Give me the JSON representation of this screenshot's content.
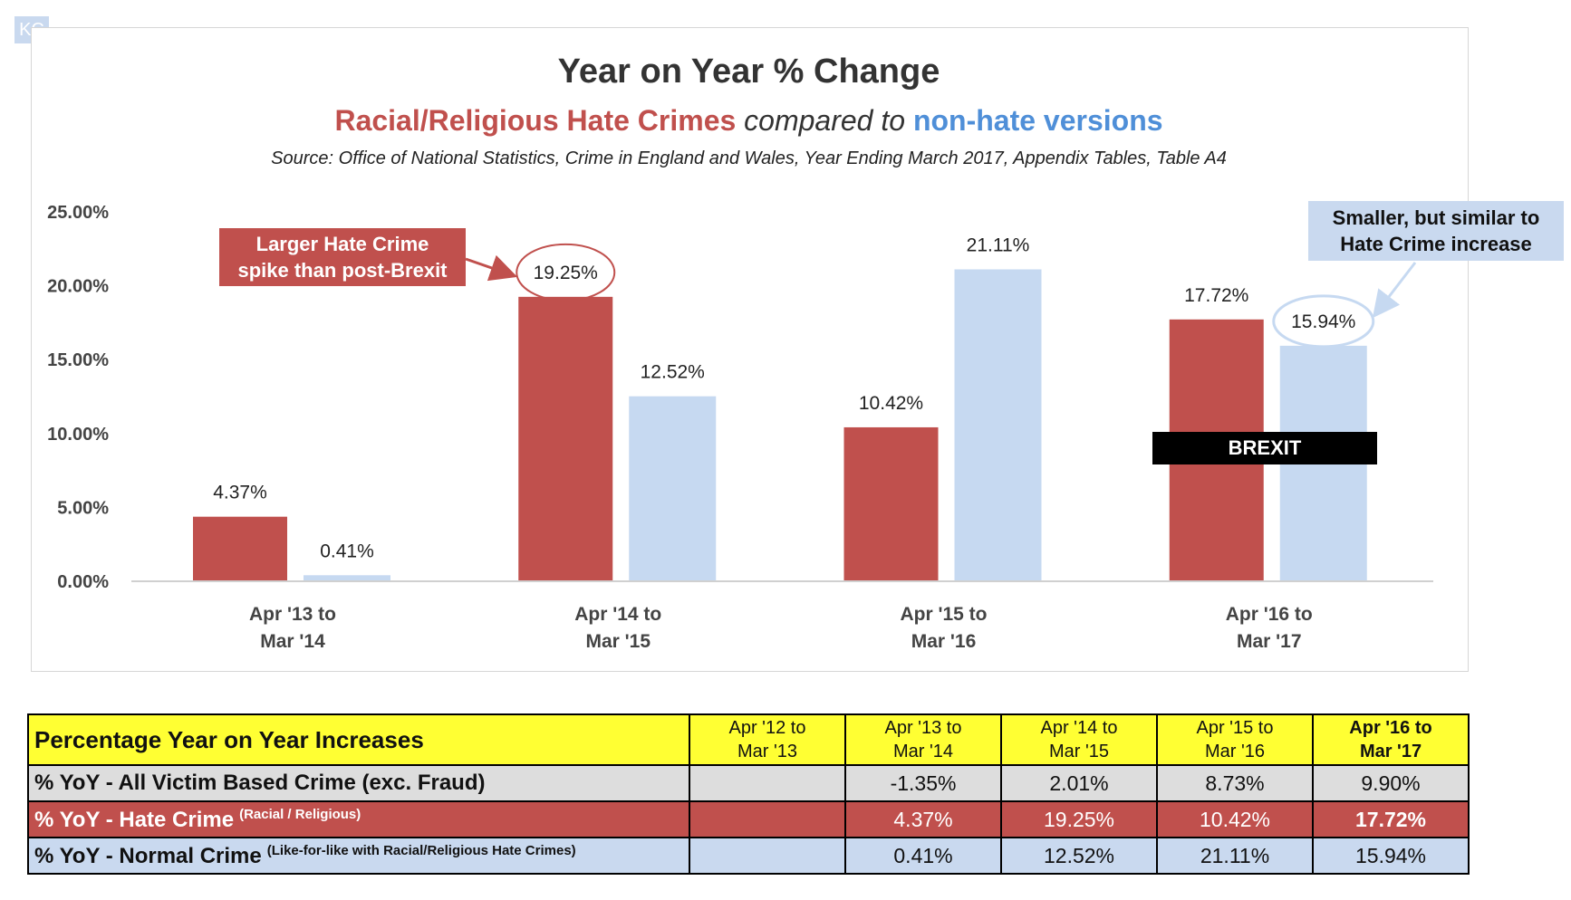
{
  "badge": "KC",
  "chart_data": {
    "type": "bar",
    "title": "Year on Year % Change",
    "subtitle": {
      "part1": "Racial/Religious Hate Crimes",
      "part2": "compared to",
      "part3": "non-hate versions"
    },
    "source": "Source: Office of National Statistics, Crime in England and Wales, Year Ending March 2017, Appendix Tables, Table A4",
    "categories": [
      [
        "Apr '13 to",
        "Mar '14"
      ],
      [
        "Apr '14 to",
        "Mar '15"
      ],
      [
        "Apr '15 to",
        "Mar '16"
      ],
      [
        "Apr '16 to",
        "Mar '17"
      ]
    ],
    "series": [
      {
        "key": "hate",
        "color": "#c0504d",
        "values": [
          4.37,
          19.25,
          10.42,
          17.72
        ],
        "labels": [
          "4.37%",
          "19.25%",
          "10.42%",
          "17.72%"
        ]
      },
      {
        "key": "normal",
        "color": "#c6d9f1",
        "values": [
          0.41,
          12.52,
          21.11,
          15.94
        ],
        "labels": [
          "0.41%",
          "12.52%",
          "21.11%",
          "15.94%"
        ]
      }
    ],
    "ylim": [
      0,
      25
    ],
    "yticks": [
      0,
      5,
      10,
      15,
      20,
      25
    ],
    "ytick_labels": [
      "0.00%",
      "5.00%",
      "10.00%",
      "15.00%",
      "20.00%",
      "25.00%"
    ],
    "grid": false,
    "annotations": {
      "left_callout": [
        "Larger Hate Crime",
        "spike than post-Brexit"
      ],
      "right_callout": [
        "Smaller, but similar to",
        "Hate Crime increase"
      ],
      "brexit": "BREXIT"
    }
  },
  "table": {
    "header_label": "Percentage Year on Year Increases",
    "periods": [
      [
        "Apr '12 to",
        "Mar '13"
      ],
      [
        "Apr '13 to",
        "Mar '14"
      ],
      [
        "Apr '14 to",
        "Mar '15"
      ],
      [
        "Apr '15 to",
        "Mar '16"
      ],
      [
        "Apr '16 to",
        "Mar '17"
      ]
    ],
    "rows": {
      "all": {
        "label": "% YoY - All Victim Based Crime (exc. Fraud)",
        "note": "",
        "values": [
          "",
          "-1.35%",
          "2.01%",
          "8.73%",
          "9.90%"
        ]
      },
      "hate": {
        "label": "% YoY - Hate Crime",
        "note": "(Racial / Religious)",
        "values": [
          "",
          "4.37%",
          "19.25%",
          "10.42%",
          "17.72%"
        ]
      },
      "normal": {
        "label": "% YoY - Normal Crime",
        "note": "(Like-for-like with Racial/Religious Hate Crimes)",
        "values": [
          "",
          "0.41%",
          "12.52%",
          "21.11%",
          "15.94%"
        ]
      }
    }
  }
}
